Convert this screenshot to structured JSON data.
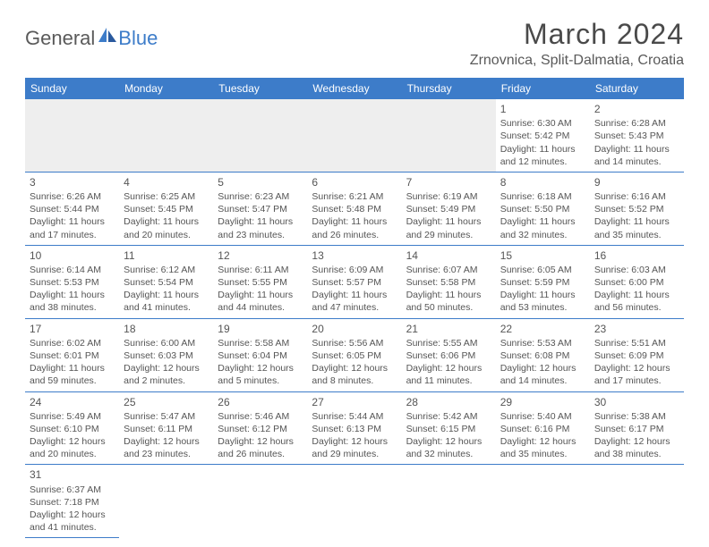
{
  "brand": {
    "name1": "General",
    "name2": "Blue"
  },
  "title": "March 2024",
  "location": "Zrnovnica, Split-Dalmatia, Croatia",
  "colors": {
    "header_bg": "#3d7cc9",
    "header_text": "#ffffff",
    "border": "#3d7cc9",
    "empty_bg": "#eeeeee",
    "text": "#555555",
    "title_text": "#4a4a4a"
  },
  "daysOfWeek": [
    "Sunday",
    "Monday",
    "Tuesday",
    "Wednesday",
    "Thursday",
    "Friday",
    "Saturday"
  ],
  "weeks": [
    [
      {
        "blank": true
      },
      {
        "blank": true
      },
      {
        "blank": true
      },
      {
        "blank": true
      },
      {
        "blank": true
      },
      {
        "n": "1",
        "sr": "Sunrise: 6:30 AM",
        "ss": "Sunset: 5:42 PM",
        "dl": "Daylight: 11 hours and 12 minutes."
      },
      {
        "n": "2",
        "sr": "Sunrise: 6:28 AM",
        "ss": "Sunset: 5:43 PM",
        "dl": "Daylight: 11 hours and 14 minutes."
      }
    ],
    [
      {
        "n": "3",
        "sr": "Sunrise: 6:26 AM",
        "ss": "Sunset: 5:44 PM",
        "dl": "Daylight: 11 hours and 17 minutes."
      },
      {
        "n": "4",
        "sr": "Sunrise: 6:25 AM",
        "ss": "Sunset: 5:45 PM",
        "dl": "Daylight: 11 hours and 20 minutes."
      },
      {
        "n": "5",
        "sr": "Sunrise: 6:23 AM",
        "ss": "Sunset: 5:47 PM",
        "dl": "Daylight: 11 hours and 23 minutes."
      },
      {
        "n": "6",
        "sr": "Sunrise: 6:21 AM",
        "ss": "Sunset: 5:48 PM",
        "dl": "Daylight: 11 hours and 26 minutes."
      },
      {
        "n": "7",
        "sr": "Sunrise: 6:19 AM",
        "ss": "Sunset: 5:49 PM",
        "dl": "Daylight: 11 hours and 29 minutes."
      },
      {
        "n": "8",
        "sr": "Sunrise: 6:18 AM",
        "ss": "Sunset: 5:50 PM",
        "dl": "Daylight: 11 hours and 32 minutes."
      },
      {
        "n": "9",
        "sr": "Sunrise: 6:16 AM",
        "ss": "Sunset: 5:52 PM",
        "dl": "Daylight: 11 hours and 35 minutes."
      }
    ],
    [
      {
        "n": "10",
        "sr": "Sunrise: 6:14 AM",
        "ss": "Sunset: 5:53 PM",
        "dl": "Daylight: 11 hours and 38 minutes."
      },
      {
        "n": "11",
        "sr": "Sunrise: 6:12 AM",
        "ss": "Sunset: 5:54 PM",
        "dl": "Daylight: 11 hours and 41 minutes."
      },
      {
        "n": "12",
        "sr": "Sunrise: 6:11 AM",
        "ss": "Sunset: 5:55 PM",
        "dl": "Daylight: 11 hours and 44 minutes."
      },
      {
        "n": "13",
        "sr": "Sunrise: 6:09 AM",
        "ss": "Sunset: 5:57 PM",
        "dl": "Daylight: 11 hours and 47 minutes."
      },
      {
        "n": "14",
        "sr": "Sunrise: 6:07 AM",
        "ss": "Sunset: 5:58 PM",
        "dl": "Daylight: 11 hours and 50 minutes."
      },
      {
        "n": "15",
        "sr": "Sunrise: 6:05 AM",
        "ss": "Sunset: 5:59 PM",
        "dl": "Daylight: 11 hours and 53 minutes."
      },
      {
        "n": "16",
        "sr": "Sunrise: 6:03 AM",
        "ss": "Sunset: 6:00 PM",
        "dl": "Daylight: 11 hours and 56 minutes."
      }
    ],
    [
      {
        "n": "17",
        "sr": "Sunrise: 6:02 AM",
        "ss": "Sunset: 6:01 PM",
        "dl": "Daylight: 11 hours and 59 minutes."
      },
      {
        "n": "18",
        "sr": "Sunrise: 6:00 AM",
        "ss": "Sunset: 6:03 PM",
        "dl": "Daylight: 12 hours and 2 minutes."
      },
      {
        "n": "19",
        "sr": "Sunrise: 5:58 AM",
        "ss": "Sunset: 6:04 PM",
        "dl": "Daylight: 12 hours and 5 minutes."
      },
      {
        "n": "20",
        "sr": "Sunrise: 5:56 AM",
        "ss": "Sunset: 6:05 PM",
        "dl": "Daylight: 12 hours and 8 minutes."
      },
      {
        "n": "21",
        "sr": "Sunrise: 5:55 AM",
        "ss": "Sunset: 6:06 PM",
        "dl": "Daylight: 12 hours and 11 minutes."
      },
      {
        "n": "22",
        "sr": "Sunrise: 5:53 AM",
        "ss": "Sunset: 6:08 PM",
        "dl": "Daylight: 12 hours and 14 minutes."
      },
      {
        "n": "23",
        "sr": "Sunrise: 5:51 AM",
        "ss": "Sunset: 6:09 PM",
        "dl": "Daylight: 12 hours and 17 minutes."
      }
    ],
    [
      {
        "n": "24",
        "sr": "Sunrise: 5:49 AM",
        "ss": "Sunset: 6:10 PM",
        "dl": "Daylight: 12 hours and 20 minutes."
      },
      {
        "n": "25",
        "sr": "Sunrise: 5:47 AM",
        "ss": "Sunset: 6:11 PM",
        "dl": "Daylight: 12 hours and 23 minutes."
      },
      {
        "n": "26",
        "sr": "Sunrise: 5:46 AM",
        "ss": "Sunset: 6:12 PM",
        "dl": "Daylight: 12 hours and 26 minutes."
      },
      {
        "n": "27",
        "sr": "Sunrise: 5:44 AM",
        "ss": "Sunset: 6:13 PM",
        "dl": "Daylight: 12 hours and 29 minutes."
      },
      {
        "n": "28",
        "sr": "Sunrise: 5:42 AM",
        "ss": "Sunset: 6:15 PM",
        "dl": "Daylight: 12 hours and 32 minutes."
      },
      {
        "n": "29",
        "sr": "Sunrise: 5:40 AM",
        "ss": "Sunset: 6:16 PM",
        "dl": "Daylight: 12 hours and 35 minutes."
      },
      {
        "n": "30",
        "sr": "Sunrise: 5:38 AM",
        "ss": "Sunset: 6:17 PM",
        "dl": "Daylight: 12 hours and 38 minutes."
      }
    ],
    [
      {
        "n": "31",
        "sr": "Sunrise: 6:37 AM",
        "ss": "Sunset: 7:18 PM",
        "dl": "Daylight: 12 hours and 41 minutes."
      },
      {
        "blank": true
      },
      {
        "blank": true
      },
      {
        "blank": true
      },
      {
        "blank": true
      },
      {
        "blank": true
      },
      {
        "blank": true
      }
    ]
  ]
}
